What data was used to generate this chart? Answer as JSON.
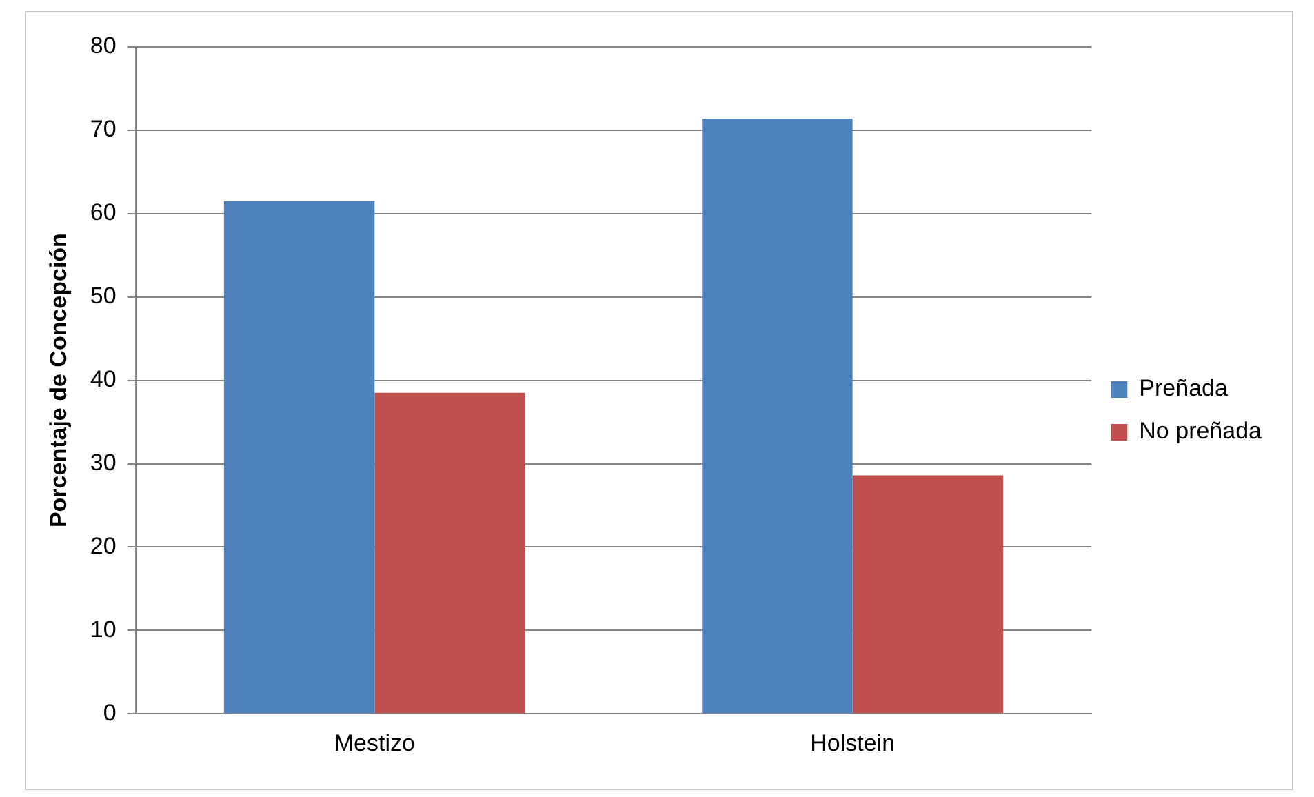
{
  "chart_data": {
    "type": "bar",
    "ylabel": "Porcentaje de Concepción",
    "categories": [
      "Mestizo",
      "Holstein"
    ],
    "series": [
      {
        "name": "Preñada",
        "color": "#4f81bd",
        "values": [
          61.5,
          71.4
        ]
      },
      {
        "name": "No preñada",
        "color": "#c0504d",
        "values": [
          38.5,
          28.6
        ]
      }
    ],
    "ylim": [
      0,
      80
    ],
    "yticks": [
      0,
      10,
      20,
      30,
      40,
      50,
      60,
      70,
      80
    ],
    "grid": "y",
    "legend": "right"
  }
}
